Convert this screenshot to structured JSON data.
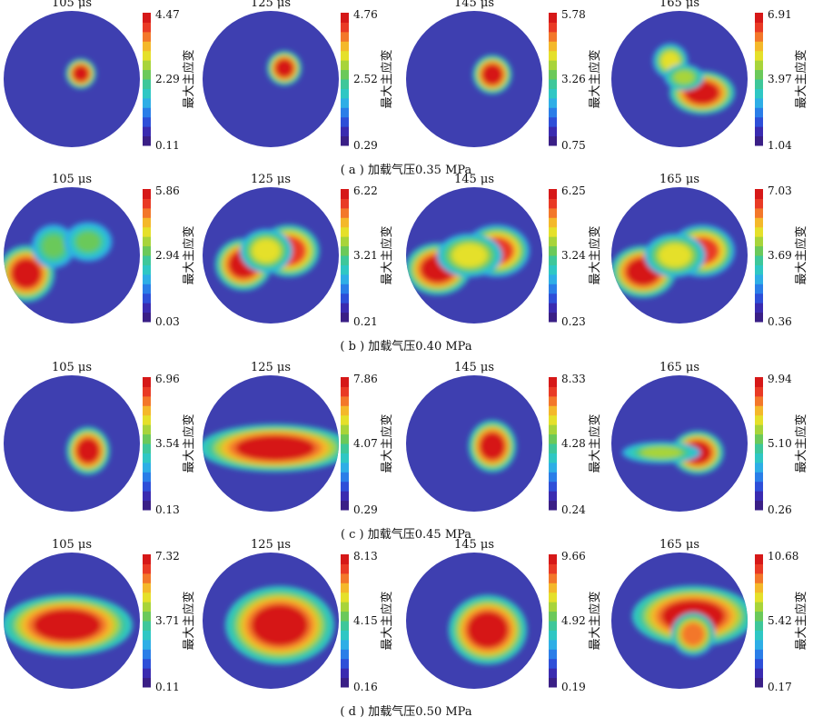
{
  "colorbar_label": "最大主应变",
  "colorbar_palette": [
    "#3a1f86",
    "#3a2bb0",
    "#2e4fd8",
    "#2a7ee8",
    "#2eaee6",
    "#2fc7c4",
    "#3ec79a",
    "#6bc95a",
    "#a8d43a",
    "#e5e02a",
    "#f4b82a",
    "#f3772a",
    "#e93a25",
    "#d61818"
  ],
  "background_color": "#3e3fb0",
  "rows": [
    {
      "caption": "( a ) 加载气压0.35 MPa",
      "panels": [
        {
          "title": "105 μs",
          "ticks": [
            "4.47",
            "2.29",
            "0.11"
          ]
        },
        {
          "title": "125 μs",
          "ticks": [
            "4.76",
            "2.52",
            "0.29"
          ]
        },
        {
          "title": "145 μs",
          "ticks": [
            "5.78",
            "3.26",
            "0.75"
          ]
        },
        {
          "title": "165 μs",
          "ticks": [
            "6.91",
            "3.97",
            "1.04"
          ]
        }
      ]
    },
    {
      "caption": "( b ) 加载气压0.40 MPa",
      "panels": [
        {
          "title": "105 μs",
          "ticks": [
            "5.86",
            "2.94",
            "0.03"
          ]
        },
        {
          "title": "125 μs",
          "ticks": [
            "6.22",
            "3.21",
            "0.21"
          ]
        },
        {
          "title": "145 μs",
          "ticks": [
            "6.25",
            "3.24",
            "0.23"
          ]
        },
        {
          "title": "165 μs",
          "ticks": [
            "7.03",
            "3.69",
            "0.36"
          ]
        }
      ]
    },
    {
      "caption": "( c ) 加载气压0.45 MPa",
      "panels": [
        {
          "title": "105 μs",
          "ticks": [
            "6.96",
            "3.54",
            "0.13"
          ]
        },
        {
          "title": "125 μs",
          "ticks": [
            "7.86",
            "4.07",
            "0.29"
          ]
        },
        {
          "title": "145 μs",
          "ticks": [
            "8.33",
            "4.28",
            "0.24"
          ]
        },
        {
          "title": "165 μs",
          "ticks": [
            "9.94",
            "5.10",
            "0.26"
          ]
        }
      ]
    },
    {
      "caption": "( d ) 加载气压0.50 MPa",
      "panels": [
        {
          "title": "105 μs",
          "ticks": [
            "7.32",
            "3.71",
            "0.11"
          ]
        },
        {
          "title": "125 μs",
          "ticks": [
            "8.13",
            "4.15",
            "0.16"
          ]
        },
        {
          "title": "145 μs",
          "ticks": [
            "9.66",
            "4.92",
            "0.19"
          ]
        },
        {
          "title": "165 μs",
          "ticks": [
            "10.68",
            "5.42",
            "0.17"
          ]
        }
      ]
    }
  ],
  "chart_data": {
    "type": "heatmap",
    "colorbar_label": "最大主应变",
    "rows": [
      {
        "caption": "( a ) 加载气压0.35 MPa",
        "times": [
          "105 μs",
          "125 μs",
          "145 μs",
          "165 μs"
        ],
        "max": [
          4.47,
          4.76,
          5.78,
          6.91
        ],
        "mid": [
          2.29,
          2.52,
          3.26,
          3.97
        ],
        "min": [
          0.11,
          0.29,
          0.75,
          1.04
        ]
      },
      {
        "caption": "( b ) 加载气压0.40 MPa",
        "times": [
          "105 μs",
          "125 μs",
          "145 μs",
          "165 μs"
        ],
        "max": [
          5.86,
          6.22,
          6.25,
          7.03
        ],
        "mid": [
          2.94,
          3.21,
          3.24,
          3.69
        ],
        "min": [
          0.03,
          0.21,
          0.23,
          0.36
        ]
      },
      {
        "caption": "( c ) 加载气压0.45 MPa",
        "times": [
          "105 μs",
          "125 μs",
          "145 μs",
          "165 μs"
        ],
        "max": [
          6.96,
          7.86,
          8.33,
          9.94
        ],
        "mid": [
          3.54,
          4.07,
          4.28,
          5.1
        ],
        "min": [
          0.13,
          0.29,
          0.24,
          0.26
        ]
      },
      {
        "caption": "( d ) 加载气压0.50 MPa",
        "times": [
          "105 μs",
          "125 μs",
          "145 μs",
          "165 μs"
        ],
        "max": [
          7.32,
          8.13,
          9.66,
          10.68
        ],
        "mid": [
          3.71,
          4.15,
          4.92,
          5.42
        ],
        "min": [
          0.11,
          0.16,
          0.19,
          0.17
        ]
      }
    ]
  }
}
